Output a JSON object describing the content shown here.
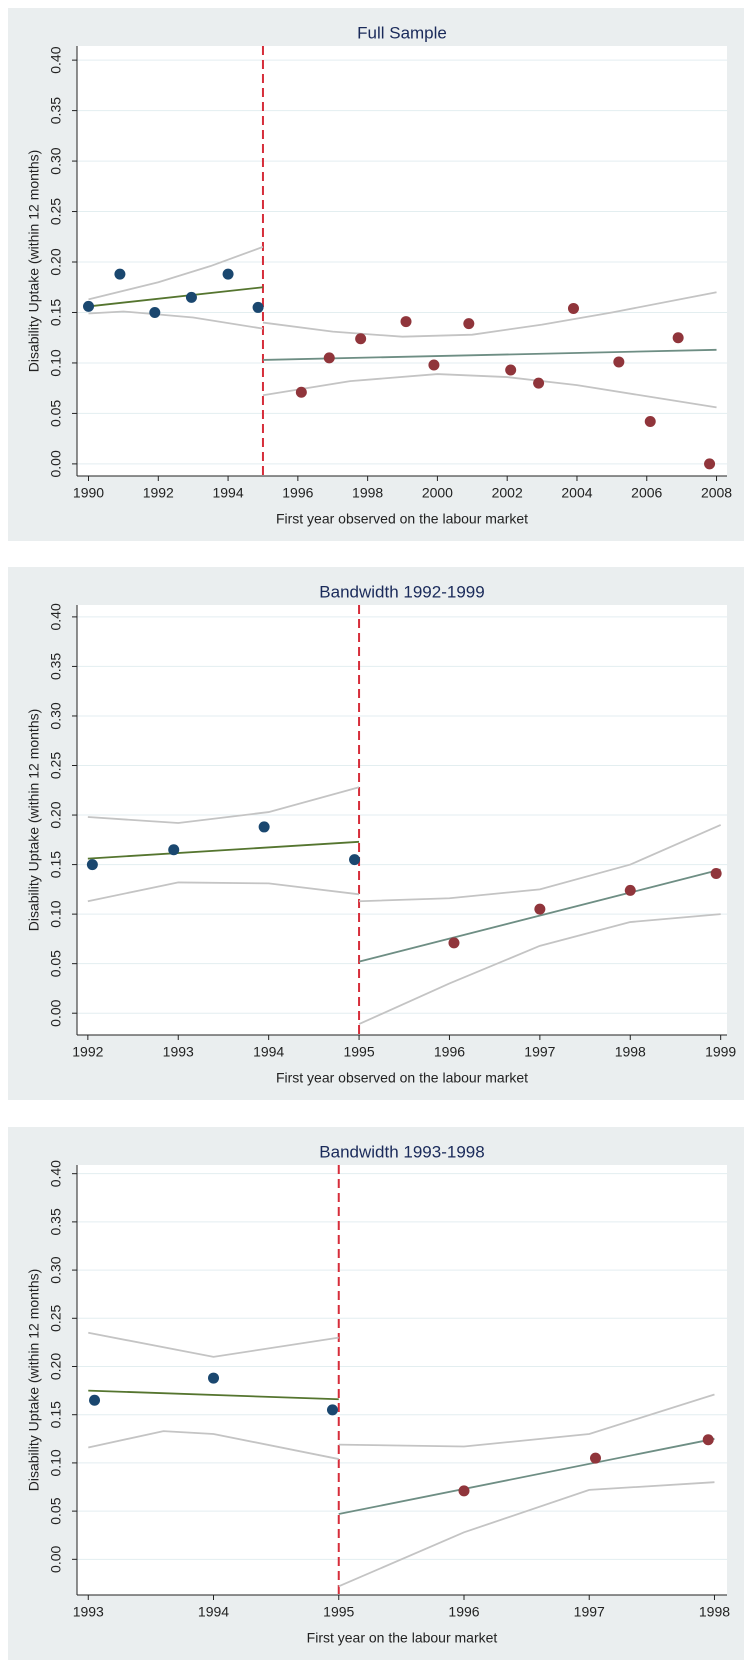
{
  "charts": [
    {
      "type": "scatter",
      "title": "Full Sample",
      "x_label": "First year observed on the labour market",
      "y_label": "Disability Uptake (within 12 months)",
      "xlim": [
        1989.67,
        2008.3
      ],
      "xticks": [
        1990,
        1992,
        1994,
        1996,
        1998,
        2000,
        2002,
        2004,
        2006,
        2008
      ],
      "ylim": [
        -0.012,
        0.414
      ],
      "yticks": [
        {
          "value": 0,
          "label": "0.00"
        },
        {
          "value": 0.05,
          "label": "0.05"
        },
        {
          "value": 0.1,
          "label": "0.10"
        },
        {
          "value": 0.15,
          "label": "0.15"
        },
        {
          "value": 0.2,
          "label": "0.20"
        },
        {
          "value": 0.25,
          "label": "0.25"
        },
        {
          "value": 0.3,
          "label": "0.30"
        },
        {
          "value": 0.35,
          "label": "0.35"
        },
        {
          "value": 0.4,
          "label": "0.40"
        }
      ],
      "cutoff": 1995,
      "cutoff_color": "#d62d3a",
      "grid": true,
      "series": [
        {
          "style": "points",
          "color": "#1a476f",
          "x": [
            1990,
            1990.9,
            1991.9,
            1992.95,
            1994,
            1994.86
          ],
          "values": [
            0.156,
            0.188,
            0.15,
            0.165,
            0.188,
            0.155
          ]
        },
        {
          "style": "points",
          "color": "#90353b",
          "x": [
            1996.1,
            1996.9,
            1997.8,
            1999.1,
            1999.9,
            2000.9,
            2002.1,
            2002.9,
            2003.9,
            2005.2,
            2006.1,
            2006.9,
            2007.8
          ],
          "values": [
            0.071,
            0.105,
            0.124,
            0.141,
            0.098,
            0.139,
            0.093,
            0.08,
            0.154,
            0.101,
            0.042,
            0.125,
            0
          ]
        },
        {
          "style": "line",
          "color": "#c4c4c4",
          "x": [
            1990,
            1992,
            1993.5,
            1995
          ],
          "values": [
            0.163,
            0.18,
            0.196,
            0.215
          ]
        },
        {
          "style": "line",
          "color": "#c4c4c4",
          "x": [
            1990,
            1991,
            1993,
            1995
          ],
          "values": [
            0.149,
            0.151,
            0.145,
            0.134
          ]
        },
        {
          "style": "line",
          "color": "#55752f",
          "x": [
            1990,
            1995
          ],
          "values": [
            0.156,
            0.175
          ]
        },
        {
          "style": "line",
          "color": "#c4c4c4",
          "x": [
            1995,
            1997,
            1999,
            2001,
            2003,
            2005,
            2008
          ],
          "values": [
            0.14,
            0.131,
            0.126,
            0.128,
            0.138,
            0.15,
            0.17
          ]
        },
        {
          "style": "line",
          "color": "#c4c4c4",
          "x": [
            1995,
            1997.5,
            2000,
            2002,
            2004,
            2006,
            2008
          ],
          "values": [
            0.068,
            0.082,
            0.089,
            0.086,
            0.078,
            0.067,
            0.056
          ]
        },
        {
          "style": "line",
          "color": "#6e8e84",
          "x": [
            1995,
            2008
          ],
          "values": [
            0.103,
            0.113
          ]
        }
      ]
    },
    {
      "type": "scatter",
      "title": "Bandwidth 1992-1999",
      "x_label": "First year observed on the labour market",
      "y_label": "Disability Uptake (within 12 months)",
      "xlim": [
        1991.88,
        1999.07
      ],
      "xticks": [
        1992,
        1993,
        1994,
        1995,
        1996,
        1997,
        1998,
        1999
      ],
      "ylim": [
        -0.022,
        0.412
      ],
      "yticks": [
        {
          "value": 0,
          "label": "0.00"
        },
        {
          "value": 0.05,
          "label": "0.05"
        },
        {
          "value": 0.1,
          "label": "0.10"
        },
        {
          "value": 0.15,
          "label": "0.15"
        },
        {
          "value": 0.2,
          "label": "0.20"
        },
        {
          "value": 0.25,
          "label": "0.25"
        },
        {
          "value": 0.3,
          "label": "0.30"
        },
        {
          "value": 0.35,
          "label": "0.35"
        },
        {
          "value": 0.4,
          "label": "0.40"
        }
      ],
      "cutoff": 1995,
      "cutoff_color": "#d62d3a",
      "grid": true,
      "series": [
        {
          "style": "points",
          "color": "#1a476f",
          "x": [
            1992.05,
            1992.95,
            1993.95,
            1994.95
          ],
          "values": [
            0.15,
            0.165,
            0.188,
            0.155
          ]
        },
        {
          "style": "points",
          "color": "#90353b",
          "x": [
            1996.05,
            1997,
            1998,
            1998.95
          ],
          "values": [
            0.071,
            0.105,
            0.124,
            0.141
          ]
        },
        {
          "style": "line",
          "color": "#c4c4c4",
          "x": [
            1992,
            1993,
            1994,
            1995
          ],
          "values": [
            0.198,
            0.192,
            0.203,
            0.228
          ]
        },
        {
          "style": "line",
          "color": "#c4c4c4",
          "x": [
            1992,
            1993,
            1994,
            1995
          ],
          "values": [
            0.113,
            0.132,
            0.131,
            0.12
          ]
        },
        {
          "style": "line",
          "color": "#55752f",
          "x": [
            1992,
            1995
          ],
          "values": [
            0.156,
            0.173
          ]
        },
        {
          "style": "line",
          "color": "#c4c4c4",
          "x": [
            1995,
            1996,
            1997,
            1998,
            1999
          ],
          "values": [
            0.113,
            0.116,
            0.125,
            0.15,
            0.19
          ]
        },
        {
          "style": "line",
          "color": "#c4c4c4",
          "x": [
            1995,
            1996,
            1997,
            1998,
            1999
          ],
          "values": [
            -0.011,
            0.03,
            0.068,
            0.092,
            0.1
          ]
        },
        {
          "style": "line",
          "color": "#6e8e84",
          "x": [
            1995,
            1999
          ],
          "values": [
            0.052,
            0.145
          ]
        }
      ]
    },
    {
      "type": "scatter",
      "title": "Bandwidth 1993-1998",
      "x_label": "First year on the labour market",
      "y_label": "Disability Uptake (within 12 months)",
      "xlim": [
        1992.91,
        1998.1
      ],
      "xticks": [
        1993,
        1994,
        1995,
        1996,
        1997,
        1998
      ],
      "ylim": [
        -0.037,
        0.409
      ],
      "yticks": [
        {
          "value": 0,
          "label": "0.00"
        },
        {
          "value": 0.05,
          "label": "0.05"
        },
        {
          "value": 0.1,
          "label": "0.10"
        },
        {
          "value": 0.15,
          "label": "0.15"
        },
        {
          "value": 0.2,
          "label": "0.20"
        },
        {
          "value": 0.25,
          "label": "0.25"
        },
        {
          "value": 0.3,
          "label": "0.30"
        },
        {
          "value": 0.35,
          "label": "0.35"
        },
        {
          "value": 0.4,
          "label": "0.40"
        }
      ],
      "cutoff": 1995,
      "cutoff_color": "#d62d3a",
      "grid": true,
      "series": [
        {
          "style": "points",
          "color": "#1a476f",
          "x": [
            1993.05,
            1994,
            1994.95
          ],
          "values": [
            0.165,
            0.188,
            0.155
          ]
        },
        {
          "style": "points",
          "color": "#90353b",
          "x": [
            1996,
            1997.05,
            1997.95
          ],
          "values": [
            0.071,
            0.105,
            0.124
          ]
        },
        {
          "style": "line",
          "color": "#c4c4c4",
          "x": [
            1993,
            1994,
            1995
          ],
          "values": [
            0.235,
            0.21,
            0.23
          ]
        },
        {
          "style": "line",
          "color": "#c4c4c4",
          "x": [
            1993,
            1993.6,
            1994,
            1995
          ],
          "values": [
            0.116,
            0.133,
            0.13,
            0.104
          ]
        },
        {
          "style": "line",
          "color": "#55752f",
          "x": [
            1993,
            1995
          ],
          "values": [
            0.175,
            0.166
          ]
        },
        {
          "style": "line",
          "color": "#c4c4c4",
          "x": [
            1995,
            1996,
            1997,
            1998
          ],
          "values": [
            0.119,
            0.117,
            0.13,
            0.171
          ]
        },
        {
          "style": "line",
          "color": "#c4c4c4",
          "x": [
            1995,
            1996,
            1997,
            1998
          ],
          "values": [
            -0.028,
            0.028,
            0.072,
            0.08
          ]
        },
        {
          "style": "line",
          "color": "#6e8e84",
          "x": [
            1995,
            1998
          ],
          "values": [
            0.047,
            0.125
          ]
        }
      ]
    }
  ]
}
